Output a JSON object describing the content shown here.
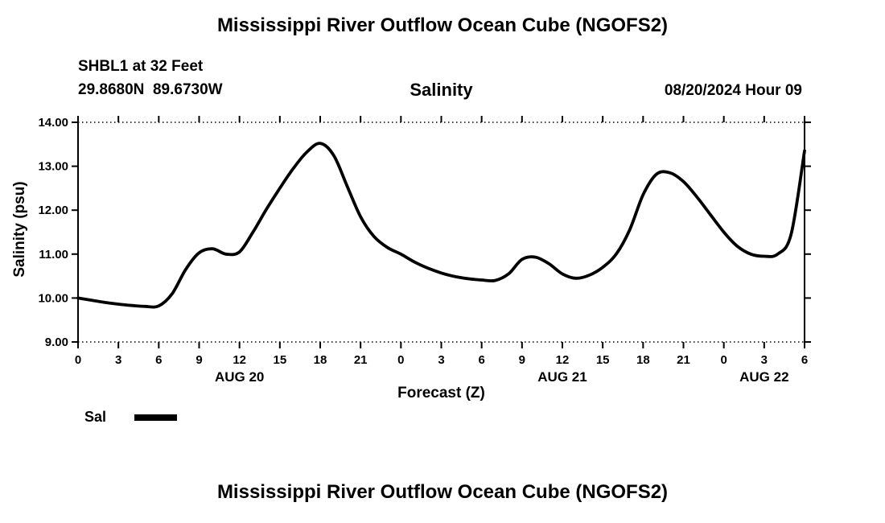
{
  "page": {
    "title": "Mississippi River Outflow Ocean Cube (NGOFS2)",
    "next_chart_title": "Mississippi River Outflow Ocean Cube (NGOFS2)"
  },
  "header": {
    "station": "SHBL1 at 32 Feet",
    "coordinates": "29.8680N  89.6730W",
    "plot_title": "Salinity",
    "datetime": "08/20/2024 Hour 09"
  },
  "chart_data": {
    "type": "line",
    "title": "Salinity",
    "xlabel": "Forecast (Z)",
    "ylabel": "Salinity (psu)",
    "xlim": [
      0,
      54
    ],
    "ylim": [
      9.0,
      14.0
    ],
    "grid": "no interior gridlines; top and bottom frame lines dotted; left and right frame lines solid; outward tick marks on all four sides",
    "ink_color": "#000000",
    "background_color": "#ffffff",
    "x_tick_hours": [
      0,
      3,
      6,
      9,
      12,
      15,
      18,
      21,
      24,
      27,
      30,
      33,
      36,
      39,
      42,
      45,
      48,
      51,
      54
    ],
    "x_tick_labels": [
      "0",
      "3",
      "6",
      "9",
      "12",
      "15",
      "18",
      "21",
      "0",
      "3",
      "6",
      "9",
      "12",
      "15",
      "18",
      "21",
      "0",
      "3",
      "6"
    ],
    "y_tick_values": [
      9,
      10,
      11,
      12,
      13,
      14
    ],
    "y_tick_labels": [
      "9.00",
      "10.00",
      "11.00",
      "12.00",
      "13.00",
      "14.00"
    ],
    "day_labels": [
      {
        "label": "AUG 20",
        "hour": 12
      },
      {
        "label": "AUG 21",
        "hour": 36
      },
      {
        "label": "AUG 22",
        "hour": 51
      }
    ],
    "legend": [
      {
        "label": "Sal",
        "color": "#000000"
      }
    ],
    "legend_position": "bottom-left",
    "series": [
      {
        "name": "Sal",
        "color": "#000000",
        "x": [
          0,
          1,
          2,
          3,
          4,
          5,
          6,
          7,
          8,
          9,
          10,
          11,
          12,
          13,
          14,
          15,
          16,
          17,
          18,
          19,
          20,
          21,
          22,
          23,
          24,
          25,
          26,
          27,
          28,
          29,
          30,
          31,
          32,
          33,
          34,
          35,
          36,
          37,
          38,
          39,
          40,
          41,
          42,
          43,
          44,
          45,
          46,
          47,
          48,
          49,
          50,
          51,
          52,
          53,
          54
        ],
        "y": [
          10.0,
          9.95,
          9.9,
          9.86,
          9.83,
          9.81,
          9.82,
          10.1,
          10.65,
          11.03,
          11.12,
          11.0,
          11.05,
          11.5,
          12.02,
          12.5,
          12.95,
          13.32,
          13.52,
          13.25,
          12.55,
          11.85,
          11.4,
          11.15,
          11.0,
          10.82,
          10.68,
          10.57,
          10.49,
          10.44,
          10.41,
          10.4,
          10.55,
          10.88,
          10.93,
          10.78,
          10.55,
          10.45,
          10.52,
          10.7,
          11.0,
          11.55,
          12.35,
          12.82,
          12.85,
          12.65,
          12.3,
          11.9,
          11.5,
          11.18,
          11.0,
          10.95,
          11.0,
          11.45,
          13.35
        ]
      }
    ]
  }
}
